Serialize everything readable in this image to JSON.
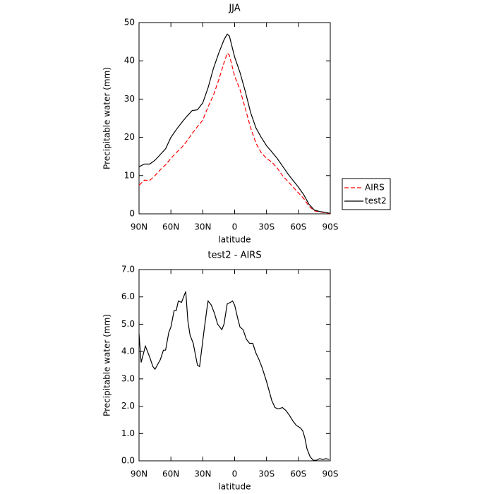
{
  "chart_data": [
    {
      "type": "line",
      "title": "JJA",
      "x_label": "latitude",
      "y_label": "Precipitable water (mm)",
      "x": [
        90,
        85,
        80,
        75,
        70,
        65,
        60,
        55,
        50,
        45,
        40,
        35,
        30,
        25,
        20,
        15,
        10,
        7,
        5,
        0,
        -5,
        -10,
        -15,
        -20,
        -25,
        -30,
        -35,
        -40,
        -45,
        -50,
        -55,
        -60,
        -65,
        -70,
        -75,
        -80,
        -85,
        -90
      ],
      "series": [
        {
          "name": "AIRS",
          "color": "#ff0000",
          "dash": true,
          "values": [
            7.5,
            8.8,
            8.7,
            10,
            11.5,
            12.8,
            14.5,
            16,
            17.3,
            19,
            21,
            22.8,
            24.5,
            28,
            31,
            35,
            39.5,
            42,
            41.5,
            36,
            32.5,
            27.5,
            22.5,
            18.5,
            16,
            14.5,
            13.5,
            12,
            10,
            8.5,
            7,
            5.5,
            4,
            2,
            0.8,
            0.5,
            0.3,
            0
          ]
        },
        {
          "name": "test2",
          "color": "#000000",
          "dash": false,
          "values": [
            12.3,
            13,
            13,
            14,
            15.5,
            17,
            20,
            22,
            23.8,
            25.5,
            27,
            27.2,
            29,
            33,
            38,
            42,
            45.5,
            47,
            46.5,
            41,
            37,
            32,
            26.5,
            22.5,
            20,
            17.8,
            16.2,
            14.5,
            12.5,
            10.5,
            8.7,
            7,
            5,
            2.5,
            1,
            0.6,
            0.4,
            0.1
          ]
        }
      ],
      "xlim": [
        90,
        -90
      ],
      "xticks": [
        {
          "value": 90,
          "label": "90N"
        },
        {
          "value": 60,
          "label": "60N"
        },
        {
          "value": 30,
          "label": "30N"
        },
        0,
        {
          "value": -30,
          "label": "30S"
        },
        {
          "value": -60,
          "label": "60S"
        },
        {
          "value": -90,
          "label": "90S"
        }
      ],
      "ylim": [
        0,
        50
      ],
      "yticks": [
        0,
        10,
        20,
        30,
        40,
        50
      ],
      "legend": "right"
    },
    {
      "type": "line",
      "title": "test2 - AIRS",
      "x_label": "latitude",
      "y_label": "Precipitable water (mm)",
      "x": [
        90,
        88,
        84,
        80,
        77,
        75,
        70,
        67,
        65,
        62,
        60,
        57,
        55,
        53,
        50,
        48,
        46,
        44,
        42,
        39,
        35,
        33,
        29,
        26,
        25,
        22,
        19,
        16,
        12,
        10,
        7,
        4,
        2,
        0,
        -3,
        -5,
        -8,
        -11,
        -14,
        -17,
        -20,
        -23,
        -26,
        -30,
        -35,
        -38,
        -41,
        -45,
        -48,
        -51,
        -55,
        -58,
        -62,
        -64,
        -66,
        -68,
        -71,
        -74,
        -77,
        -80,
        -83,
        -86,
        -89
      ],
      "series": [
        {
          "name": "test2 - AIRS",
          "color": "#000000",
          "dash": false,
          "values": [
            4.65,
            3.6,
            4.2,
            3.8,
            3.45,
            3.35,
            3.7,
            4.05,
            4.05,
            4.7,
            4.9,
            5.5,
            5.5,
            5.85,
            5.8,
            6.0,
            6.2,
            5.1,
            4.6,
            4.3,
            3.5,
            3.45,
            4.7,
            5.6,
            5.85,
            5.7,
            5.4,
            5.0,
            4.8,
            5.0,
            5.75,
            5.8,
            5.85,
            5.7,
            5.2,
            4.9,
            4.8,
            4.45,
            4.3,
            4.3,
            3.95,
            3.7,
            3.4,
            2.9,
            2.2,
            1.95,
            1.9,
            1.95,
            1.85,
            1.7,
            1.45,
            1.3,
            1.2,
            1.1,
            0.85,
            0.45,
            0.15,
            0.02,
            0.02,
            0.08,
            0.05,
            0.08,
            0.05
          ]
        }
      ],
      "xlim": [
        90,
        -90
      ],
      "xticks": [
        {
          "value": 90,
          "label": "90N"
        },
        {
          "value": 60,
          "label": "60N"
        },
        {
          "value": 30,
          "label": "30N"
        },
        0,
        {
          "value": -30,
          "label": "30S"
        },
        {
          "value": -60,
          "label": "60S"
        },
        {
          "value": -90,
          "label": "90S"
        }
      ],
      "ylim": [
        0,
        7
      ],
      "yticks": [
        {
          "value": 0,
          "label": "0.0"
        },
        {
          "value": 1,
          "label": "1.0"
        },
        {
          "value": 2,
          "label": "2.0"
        },
        {
          "value": 3,
          "label": "3.0"
        },
        {
          "value": 4,
          "label": "4.0"
        },
        {
          "value": 5,
          "label": "5.0"
        },
        {
          "value": 6,
          "label": "6.0"
        },
        {
          "value": 7,
          "label": "7.0"
        }
      ]
    }
  ]
}
